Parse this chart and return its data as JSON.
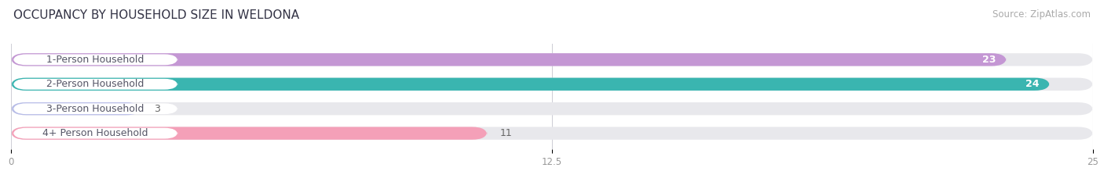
{
  "title": "OCCUPANCY BY HOUSEHOLD SIZE IN WELDONA",
  "source": "Source: ZipAtlas.com",
  "categories": [
    "1-Person Household",
    "2-Person Household",
    "3-Person Household",
    "4+ Person Household"
  ],
  "values": [
    23,
    24,
    3,
    11
  ],
  "bar_colors": [
    "#c497d4",
    "#3ab5b0",
    "#b8bde8",
    "#f4a0b8"
  ],
  "bg_bar_color": "#e8e8ec",
  "xlim": [
    0,
    25
  ],
  "xticks": [
    0,
    12.5,
    25
  ],
  "xtick_labels": [
    "0",
    "12.5",
    "25"
  ],
  "title_fontsize": 11,
  "source_fontsize": 8.5,
  "label_fontsize": 9,
  "value_fontsize": 9,
  "bar_height": 0.52,
  "bg_color": "#ffffff",
  "label_pill_color": "#ffffff",
  "label_text_color": "#555566",
  "value_text_color_inside": "#ffffff",
  "value_text_color_outside": "#666666"
}
